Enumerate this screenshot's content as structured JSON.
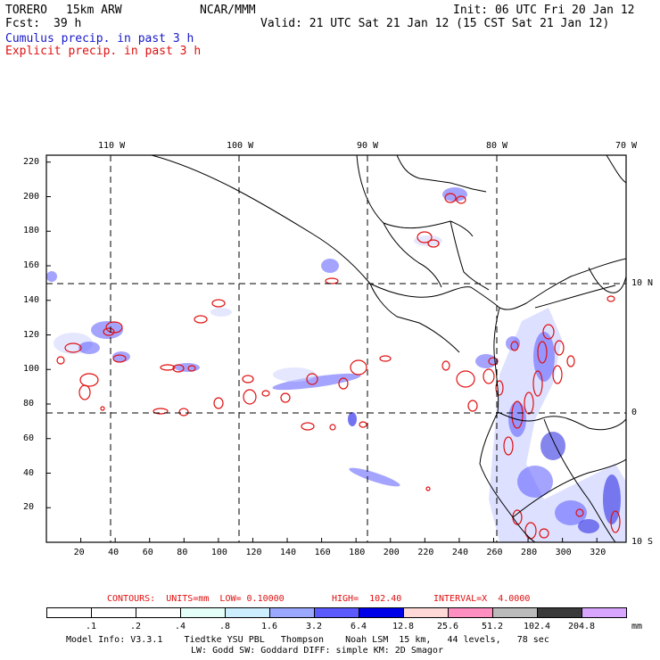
{
  "header": {
    "model": "TORERO",
    "resolution": "15km ARW",
    "org": "NCAR/MMM",
    "init": "Init: 06 UTC Fri 20 Jan 12",
    "fcst_label": "Fcst:",
    "fcst_value": "39 h",
    "valid": "Valid: 21 UTC Sat 21 Jan 12 (15 CST Sat 21 Jan 12)",
    "line_cumulus": "Cumulus precip. in past 3 h",
    "line_explicit": "Explicit precip. in past 3 h"
  },
  "map": {
    "lon_labels": [
      "110 W",
      "100 W",
      "90 W",
      "80 W",
      "70 W"
    ],
    "lat_labels": [
      "10 N",
      "0",
      "10 S"
    ],
    "x_ticks": [
      "20",
      "40",
      "60",
      "80",
      "100",
      "120",
      "140",
      "160",
      "180",
      "200",
      "220",
      "240",
      "260",
      "280",
      "300",
      "320"
    ],
    "y_ticks": [
      "220",
      "200",
      "180",
      "160",
      "140",
      "120",
      "100",
      "80",
      "60",
      "40",
      "20"
    ]
  },
  "contours": {
    "units": "CONTOURS:  UNITS=mm  LOW= 0.10000",
    "high": "HIGH=  102.40",
    "interval": "INTERVAL=X  4.0000"
  },
  "colorbar": {
    "levels": [
      ".1",
      ".2",
      ".4",
      ".8",
      "1.6",
      "3.2",
      "6.4",
      "12.8",
      "25.6",
      "51.2",
      "102.4",
      "204.8"
    ],
    "unit": "mm",
    "colors": [
      "#ffffff",
      "#ffffff",
      "#ffffff",
      "#e4fff8",
      "#cceeff",
      "#9ba8ff",
      "#5a5aff",
      "#0000e8",
      "#ffd8d8",
      "#ff8fc0",
      "#bbbbbb",
      "#3a3a3a",
      "#d9a6ff"
    ]
  },
  "footer": {
    "line1": "Model Info: V3.3.1    Tiedtke YSU PBL   Thompson    Noah LSM  15 km,   44 levels,   78 sec",
    "line2": "LW: Godd SW: Goddard DIFF: simple KM: 2D Smagor"
  }
}
